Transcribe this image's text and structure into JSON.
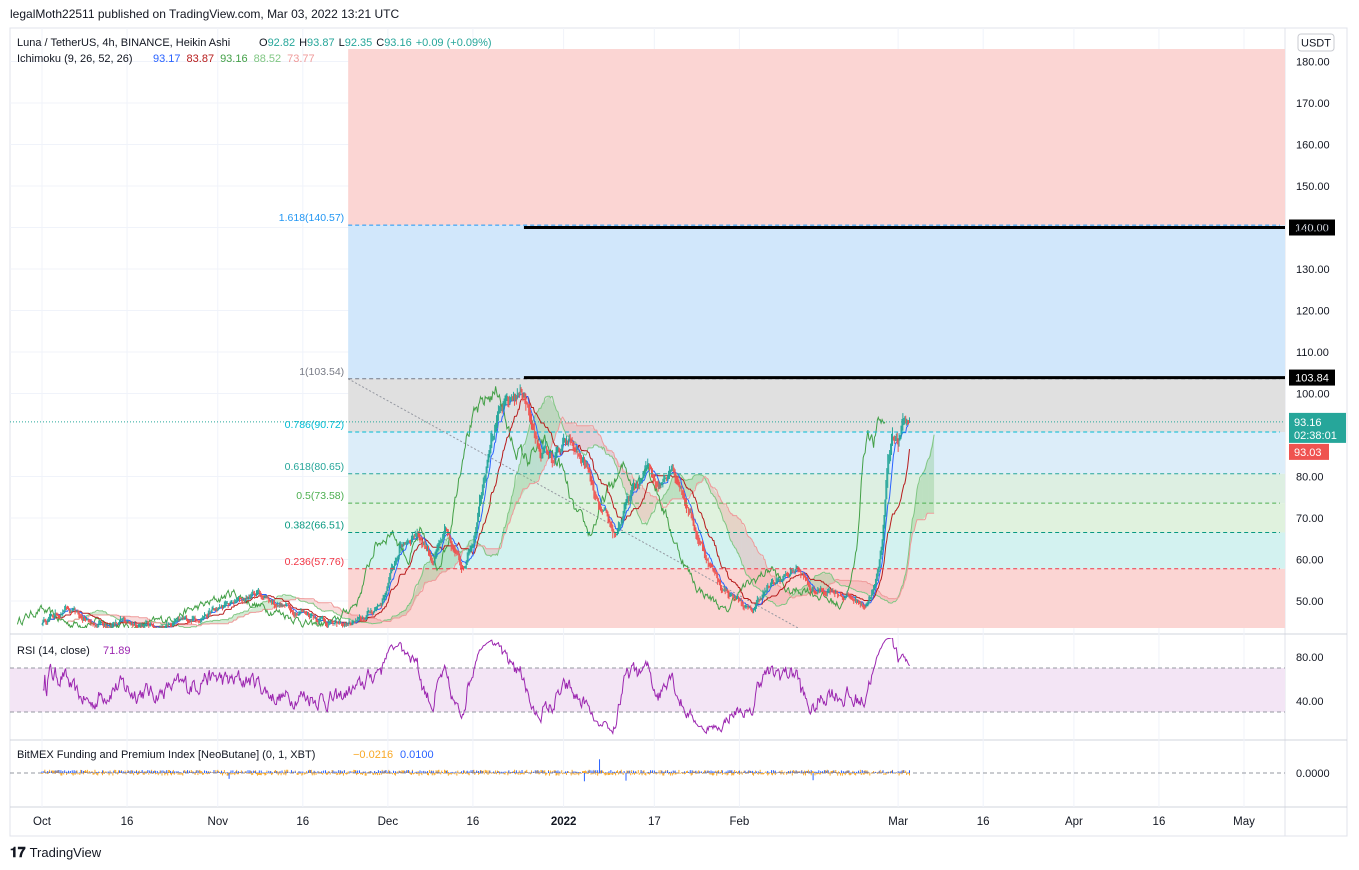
{
  "header": {
    "published": "legalMoth22511 published on TradingView.com, Mar 03, 2022 13:21 UTC"
  },
  "footer": {
    "logo_glyph": "𝟏𝟕",
    "brand": "TradingView"
  },
  "legend": {
    "symbol": "Luna / TetherUS, 4h, BINANCE, Heikin Ashi",
    "ohlc": [
      {
        "k": "O",
        "v": "92.82"
      },
      {
        "k": "H",
        "v": "93.87"
      },
      {
        "k": "L",
        "v": "92.35"
      },
      {
        "k": "C",
        "v": "93.16"
      }
    ],
    "change": "+0.09 (+0.09%)",
    "ichimoku_label": "Ichimoku (9, 26, 52, 26)",
    "ichimoku_values": [
      {
        "v": "93.17",
        "color": "#2962ff"
      },
      {
        "v": "83.87",
        "color": "#b71c1c"
      },
      {
        "v": "93.16",
        "color": "#43a047"
      },
      {
        "v": "88.52",
        "color": "#81c784"
      },
      {
        "v": "73.77",
        "color": "#ef9a9a"
      }
    ],
    "rsi_label": "RSI (14, close)",
    "rsi_value": "71.89",
    "bitmex_label": "BitMEX Funding and Premium Index [NeoButane] (0, 1, XBT)",
    "bitmex_values": [
      "−0.0216",
      "0.0100"
    ]
  },
  "currency": "USDT",
  "colors": {
    "up": "#26a69a",
    "down": "#ef5350",
    "tenkan": "#2962ff",
    "kijun": "#b71c1c",
    "chikou": "#43a047",
    "spanA": "#81c784",
    "spanB": "#ef9a9a",
    "rsi": "#9c27b0",
    "rsi_band": "#f3e5f5"
  },
  "chart_data": [
    {
      "type": "candlestick",
      "title": "Luna / TetherUS, 4h, BINANCE, Heikin Ashi",
      "x_tick_labels": [
        "Oct",
        "16",
        "Nov",
        "16",
        "Dec",
        "16",
        "2022",
        "17",
        "Feb",
        "Mar",
        "16",
        "Apr",
        "16",
        "May"
      ],
      "x_tick_dates": [
        "2021-10-01",
        "2021-10-16",
        "2021-11-01",
        "2021-11-16",
        "2021-12-01",
        "2021-12-16",
        "2022-01-01",
        "2022-01-17",
        "2022-02-01",
        "2022-03-01",
        "2022-03-16",
        "2022-04-01",
        "2022-04-16",
        "2022-05-01"
      ],
      "y_ticks": [
        "180.00",
        "170.00",
        "160.00",
        "150.00",
        "140.00",
        "130.00",
        "120.00",
        "110.00",
        "100.00",
        "80.00",
        "70.00",
        "60.00",
        "50.00"
      ],
      "ylim": [
        43.3,
        182.7
      ],
      "price_path": [
        [
          "2021-10-01",
          45
        ],
        [
          "2021-10-05",
          48
        ],
        [
          "2021-10-10",
          44.5
        ],
        [
          "2021-10-16",
          45
        ],
        [
          "2021-10-22",
          43.5
        ],
        [
          "2021-10-28",
          46
        ],
        [
          "2021-11-03",
          49
        ],
        [
          "2021-11-08",
          52
        ],
        [
          "2021-11-12",
          49
        ],
        [
          "2021-11-17",
          47
        ],
        [
          "2021-11-22",
          44
        ],
        [
          "2021-11-26",
          45
        ],
        [
          "2021-11-30",
          50
        ],
        [
          "2021-12-03",
          63
        ],
        [
          "2021-12-06",
          67
        ],
        [
          "2021-12-09",
          60
        ],
        [
          "2021-12-11",
          66
        ],
        [
          "2021-12-14",
          58
        ],
        [
          "2021-12-16",
          65
        ],
        [
          "2021-12-19",
          90
        ],
        [
          "2021-12-21",
          95
        ],
        [
          "2021-12-23",
          99
        ],
        [
          "2021-12-25",
          101
        ],
        [
          "2021-12-27",
          88
        ],
        [
          "2021-12-30",
          84
        ],
        [
          "2022-01-02",
          88
        ],
        [
          "2022-01-05",
          82
        ],
        [
          "2022-01-07",
          72
        ],
        [
          "2022-01-10",
          66
        ],
        [
          "2022-01-13",
          76
        ],
        [
          "2022-01-16",
          82
        ],
        [
          "2022-01-18",
          78
        ],
        [
          "2022-01-20",
          84
        ],
        [
          "2022-01-22",
          76
        ],
        [
          "2022-01-25",
          64
        ],
        [
          "2022-01-27",
          58
        ],
        [
          "2022-01-29",
          53
        ],
        [
          "2022-02-01",
          50
        ],
        [
          "2022-02-03",
          47
        ],
        [
          "2022-02-05",
          52
        ],
        [
          "2022-02-08",
          55
        ],
        [
          "2022-02-11",
          58
        ],
        [
          "2022-02-14",
          52
        ],
        [
          "2022-02-17",
          53
        ],
        [
          "2022-02-20",
          51
        ],
        [
          "2022-02-23",
          49
        ],
        [
          "2022-02-25",
          54
        ],
        [
          "2022-02-26",
          62
        ],
        [
          "2022-02-27",
          82
        ],
        [
          "2022-02-28",
          92
        ],
        [
          "2022-03-01",
          88
        ],
        [
          "2022-03-02",
          93
        ],
        [
          "2022-03-03",
          93.16
        ]
      ],
      "current_price": "93.16",
      "countdown": "02:38:01",
      "prev_close": "93.03",
      "horizontal_levels": [
        {
          "price": 140.0,
          "label": "140.00",
          "from": "2021-12-25",
          "color": "#000000"
        },
        {
          "price": 103.84,
          "label": "103.84",
          "from": "2021-12-25",
          "color": "#000000"
        }
      ],
      "fib_retracement": {
        "from": "2021-11-24",
        "to": "2022-05-05",
        "levels": [
          {
            "ratio": "1.618",
            "price": 140.57,
            "label": "1.618(140.57)",
            "color": "#2196f3"
          },
          {
            "ratio": "1",
            "price": 103.54,
            "label": "1(103.54)",
            "color": "#787b86"
          },
          {
            "ratio": "0.786",
            "price": 90.72,
            "label": "0.786(90.72)",
            "color": "#00bcd4"
          },
          {
            "ratio": "0.618",
            "price": 80.65,
            "label": "0.618(80.65)",
            "color": "#26a69a"
          },
          {
            "ratio": "0.5",
            "price": 73.58,
            "label": "0.5(73.58)",
            "color": "#4caf50"
          },
          {
            "ratio": "0.382",
            "price": 66.51,
            "label": "0.382(66.51)",
            "color": "#089981"
          },
          {
            "ratio": "0.236",
            "price": 57.76,
            "label": "0.236(57.76)",
            "color": "#f23645"
          }
        ],
        "zones": [
          {
            "from": 183,
            "to": 140.57,
            "color": "#fbd5d3"
          },
          {
            "from": 140.57,
            "to": 103.54,
            "color": "#d1e7fb"
          },
          {
            "from": 103.54,
            "to": 90.72,
            "color": "#e0e0e0"
          },
          {
            "from": 90.72,
            "to": 80.65,
            "color": "#dcedf9"
          },
          {
            "from": 80.65,
            "to": 73.58,
            "color": "#ddefe2"
          },
          {
            "from": 73.58,
            "to": 66.51,
            "color": "#e0f2de"
          },
          {
            "from": 66.51,
            "to": 57.76,
            "color": "#d3f2f0"
          },
          {
            "from": 57.76,
            "to": 43,
            "color": "#fbd5d3"
          }
        ]
      }
    },
    {
      "type": "line",
      "title": "RSI (14, close)",
      "ylim": [
        24,
        92
      ],
      "y_ticks": [
        "80.00",
        "40.00"
      ],
      "bands": [
        70,
        30
      ],
      "last": 71.89
    },
    {
      "type": "bar",
      "title": "BitMEX Funding and Premium Index [NeoButane] (0, 1, XBT)",
      "y_ticks": [
        "0.0000"
      ],
      "values": [
        -0.0216,
        0.01
      ]
    }
  ]
}
